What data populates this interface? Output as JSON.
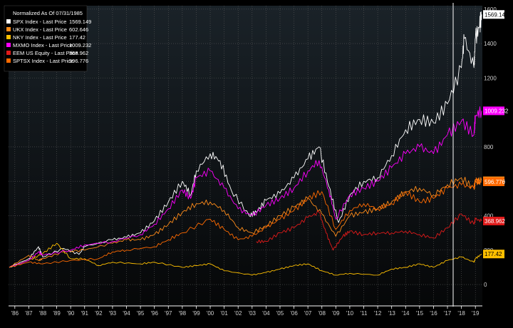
{
  "chart_data": {
    "type": "line",
    "title": "Normalized As Of 07/31/1985",
    "legend_position": "top-left",
    "grid": true,
    "x_tick_labels": [
      "'86",
      "'87",
      "'88",
      "'89",
      "'90",
      "'91",
      "'92",
      "'93",
      "'94",
      "'95",
      "'96",
      "'97",
      "'98",
      "'99",
      "'00",
      "'01",
      "'02",
      "'03",
      "'04",
      "'05",
      "'06",
      "'07",
      "'08",
      "'09",
      "'10",
      "'11",
      "'12",
      "'13",
      "'14",
      "'15",
      "'16",
      "'17",
      "'18",
      "'19"
    ],
    "y_ticks": [
      0,
      200,
      400,
      600,
      800,
      1000,
      1200,
      1400,
      1600
    ],
    "y_tick_labels": [
      "0",
      "200",
      "400",
      "600",
      "800",
      "1000",
      "1200",
      "1400",
      "1600"
    ],
    "ylim": [
      -120,
      1620
    ],
    "xlim": [
      1985.55,
      2019.5
    ],
    "series": [
      {
        "name": "SPX Index - Last Price",
        "last_value": "1569.149",
        "color": "#ffffff",
        "x": [
          1985.6,
          1987,
          1987.7,
          1988,
          1989.5,
          1990.6,
          1991,
          1993,
          1994,
          1995,
          1996,
          1997,
          1998,
          1998.6,
          1999,
          2000,
          2000.7,
          2001.5,
          2002.8,
          2003.3,
          2004,
          2005,
          2006,
          2007,
          2007.8,
          2008.5,
          2009.2,
          2010,
          2011,
          2012,
          2013,
          2014,
          2015,
          2016,
          2017,
          2018,
          2018.2,
          2018.9,
          2019,
          2019.3,
          2019.45
        ],
        "y": [
          100,
          150,
          220,
          160,
          210,
          175,
          220,
          260,
          275,
          300,
          370,
          480,
          600,
          520,
          660,
          760,
          720,
          550,
          400,
          420,
          490,
          530,
          620,
          730,
          800,
          570,
          360,
          520,
          600,
          620,
          750,
          900,
          960,
          940,
          1050,
          1260,
          1430,
          1260,
          1430,
          1500,
          1569.149
        ]
      },
      {
        "name": "UKX Index - Last Price",
        "last_value": "602.646",
        "color": "#ff8c1a",
        "x": [
          1985.6,
          1987,
          1987.7,
          1988,
          1989.5,
          1991,
          1993,
          1994,
          1995,
          1996,
          1997,
          1998,
          1999,
          2000,
          2001,
          2002,
          2003,
          2004,
          2005,
          2006,
          2007,
          2008,
          2009,
          2010,
          2011,
          2012,
          2013,
          2014,
          2015,
          2016,
          2017,
          2018,
          2018.9,
          2019,
          2019.45
        ],
        "y": [
          100,
          170,
          140,
          150,
          190,
          200,
          240,
          260,
          260,
          290,
          350,
          420,
          470,
          480,
          430,
          330,
          300,
          340,
          400,
          450,
          500,
          410,
          280,
          400,
          420,
          440,
          480,
          540,
          560,
          520,
          580,
          620,
          560,
          600,
          602.646
        ]
      },
      {
        "name": "NKY Index - Last Price",
        "last_value": "177.42",
        "color": "#ffc000",
        "x": [
          1985.6,
          1987,
          1988,
          1989,
          1990,
          1991,
          1992,
          1993,
          1995,
          1996,
          1998,
          1999,
          2000,
          2001,
          2003,
          2004,
          2005,
          2006,
          2007,
          2008,
          2009,
          2010,
          2012,
          2013,
          2014,
          2015,
          2016,
          2017,
          2018,
          2018.9,
          2019,
          2019.45
        ],
        "y": [
          100,
          140,
          180,
          240,
          150,
          150,
          110,
          130,
          120,
          130,
          100,
          110,
          120,
          80,
          55,
          70,
          90,
          110,
          120,
          80,
          55,
          65,
          55,
          90,
          100,
          120,
          100,
          140,
          160,
          130,
          150,
          177.42
        ]
      },
      {
        "name": "MXMO Index - Last Price",
        "last_value": "1009.232",
        "color": "#ff00ff",
        "x": [
          1985.6,
          1987,
          1987.7,
          1988,
          1990,
          1991,
          1993,
          1995,
          1996,
          1997,
          1998,
          1998.6,
          1999,
          2000,
          2001,
          2002,
          2003,
          2004,
          2005,
          2006,
          2007,
          2007.8,
          2008.5,
          2009,
          2010,
          2011,
          2012,
          2013,
          2014,
          2015,
          2016,
          2017,
          2018,
          2018.9,
          2019,
          2019.45
        ],
        "y": [
          100,
          140,
          190,
          170,
          200,
          230,
          250,
          290,
          350,
          440,
          550,
          500,
          620,
          660,
          560,
          440,
          400,
          460,
          500,
          560,
          660,
          720,
          550,
          380,
          520,
          560,
          600,
          680,
          760,
          800,
          760,
          870,
          950,
          870,
          980,
          1009.232
        ]
      },
      {
        "name": "EEM US Equity - Last Price",
        "last_value": "368.962",
        "color": "#e01a1a",
        "x": [
          2003.3,
          2004,
          2005,
          2006,
          2007,
          2007.8,
          2008.3,
          2008.8,
          2009.5,
          2010,
          2011,
          2012,
          2013,
          2014,
          2015,
          2016,
          2017,
          2018,
          2018.9,
          2019,
          2019.45
        ],
        "y": [
          250,
          250,
          300,
          330,
          390,
          420,
          300,
          200,
          280,
          310,
          290,
          300,
          300,
          310,
          290,
          270,
          330,
          410,
          350,
          380,
          368.962
        ]
      },
      {
        "name": "SPTSX Index - Last Price",
        "last_value": "596.776",
        "color": "#ff6a00",
        "x": [
          1985.6,
          1987,
          1988,
          1990,
          1992,
          1993,
          1994,
          1996,
          1997,
          1998,
          2000,
          2001,
          2002,
          2003,
          2004,
          2005,
          2006,
          2007,
          2008,
          2009,
          2010,
          2011,
          2012,
          2013,
          2014,
          2015,
          2016,
          2017,
          2018,
          2018.9,
          2019,
          2019.45
        ],
        "y": [
          100,
          130,
          120,
          140,
          150,
          190,
          200,
          220,
          260,
          300,
          380,
          320,
          260,
          280,
          330,
          380,
          430,
          500,
          540,
          320,
          430,
          470,
          440,
          470,
          540,
          480,
          500,
          560,
          580,
          560,
          600,
          596.776
        ]
      }
    ]
  }
}
